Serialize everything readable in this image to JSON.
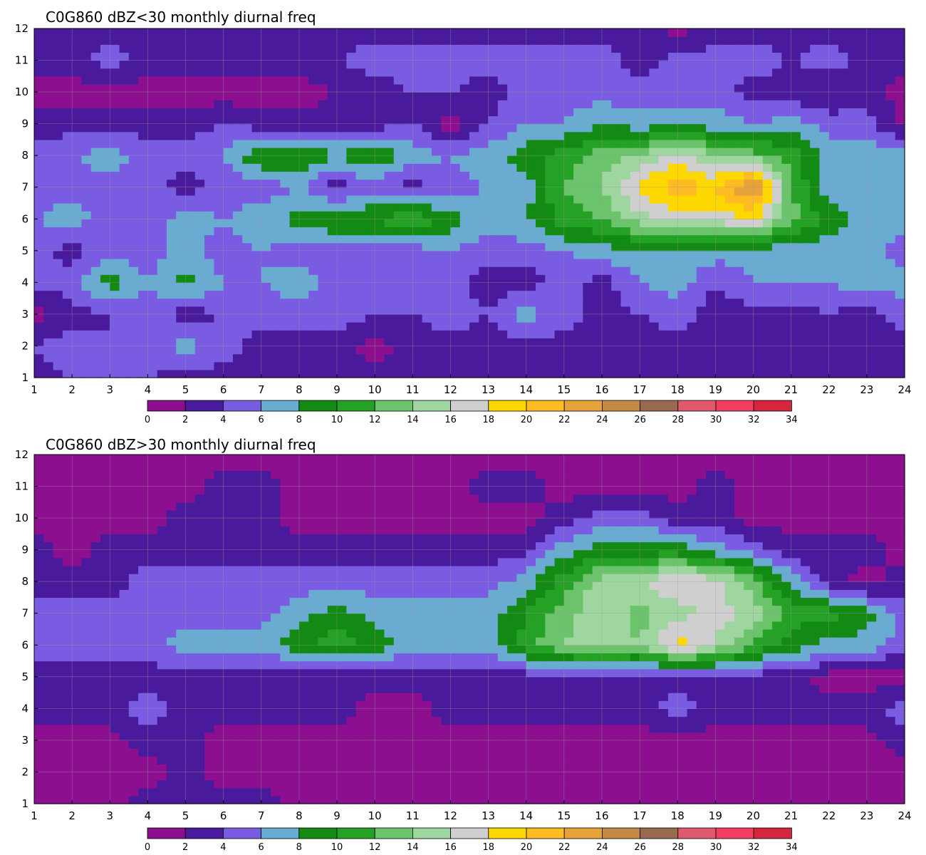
{
  "chart_data": [
    {
      "type": "heatmap",
      "title": "C0G860 dBZ<30 monthly diurnal freq",
      "xlabel": "",
      "ylabel": "",
      "x": [
        1,
        2,
        3,
        4,
        5,
        6,
        7,
        8,
        9,
        10,
        11,
        12,
        13,
        14,
        15,
        16,
        17,
        18,
        19,
        20,
        21,
        22,
        23,
        24
      ],
      "y": [
        1,
        2,
        3,
        4,
        5,
        6,
        7,
        8,
        9,
        10,
        11,
        12
      ],
      "xlim": [
        1,
        24
      ],
      "ylim": [
        1,
        12
      ],
      "grid": true,
      "z": [
        [
          3,
          4,
          4,
          4,
          3,
          3,
          2,
          2,
          2,
          3,
          3,
          2,
          3,
          3,
          3,
          3,
          3,
          2,
          3,
          3,
          2,
          3,
          2,
          3
        ],
        [
          4,
          5,
          4,
          5,
          7,
          5,
          3,
          3,
          3,
          1,
          3,
          3,
          3,
          3,
          3,
          3,
          3,
          3,
          3,
          3,
          3,
          3,
          3,
          3
        ],
        [
          1,
          3,
          4,
          5,
          3,
          4,
          5,
          5,
          5,
          4,
          4,
          5,
          4,
          7,
          5,
          3,
          4,
          5,
          3,
          3,
          3,
          4,
          3,
          5
        ],
        [
          5,
          5,
          9,
          6,
          9,
          6,
          6,
          7,
          5,
          5,
          5,
          5,
          3,
          3,
          5,
          3,
          6,
          7,
          4,
          6,
          6,
          6,
          7,
          7
        ],
        [
          5,
          3,
          5,
          5,
          7,
          5,
          6,
          5,
          5,
          5,
          5,
          6,
          5,
          5,
          6,
          7,
          8,
          7,
          7,
          7,
          7,
          7,
          7,
          5
        ],
        [
          6,
          7,
          5,
          5,
          7,
          6,
          7,
          9,
          10,
          10,
          12,
          9,
          7,
          8,
          11,
          12,
          15,
          17,
          17,
          18,
          13,
          9,
          7,
          7
        ],
        [
          5,
          5,
          5,
          5,
          3,
          5,
          5,
          6,
          3,
          5,
          3,
          5,
          6,
          7,
          12,
          14,
          19,
          21,
          20,
          25,
          12,
          7,
          7,
          7
        ],
        [
          5,
          6,
          7,
          5,
          5,
          6,
          10,
          10,
          8,
          10,
          7,
          6,
          7,
          9,
          11,
          13,
          14,
          17,
          14,
          13,
          11,
          7,
          7,
          7
        ],
        [
          3,
          3,
          3,
          3,
          3,
          4,
          3,
          3,
          3,
          3,
          4,
          1,
          4,
          6,
          6,
          8,
          7,
          7,
          7,
          6,
          7,
          5,
          5,
          1
        ],
        [
          1,
          1,
          1,
          1,
          1,
          1,
          1,
          1,
          2,
          3,
          4,
          4,
          3,
          5,
          5,
          5,
          5,
          5,
          5,
          3,
          3,
          2,
          3,
          1
        ],
        [
          3,
          3,
          5,
          3,
          3,
          3,
          3,
          3,
          4,
          5,
          5,
          5,
          5,
          5,
          5,
          5,
          3,
          5,
          5,
          5,
          4,
          5,
          3,
          3
        ],
        [
          3,
          3,
          3,
          3,
          3,
          3,
          3,
          3,
          3,
          3,
          3,
          3,
          3,
          3,
          3,
          3,
          3,
          1,
          3,
          3,
          3,
          3,
          3,
          3
        ]
      ]
    },
    {
      "type": "heatmap",
      "title": "C0G860 dBZ>30 monthly diurnal freq",
      "xlabel": "",
      "ylabel": "",
      "x": [
        1,
        2,
        3,
        4,
        5,
        6,
        7,
        8,
        9,
        10,
        11,
        12,
        13,
        14,
        15,
        16,
        17,
        18,
        19,
        20,
        21,
        22,
        23,
        24
      ],
      "y": [
        1,
        2,
        3,
        4,
        5,
        6,
        7,
        8,
        9,
        10,
        11,
        12
      ],
      "xlim": [
        1,
        24
      ],
      "ylim": [
        1,
        12
      ],
      "grid": true,
      "z": [
        [
          1,
          1,
          1,
          3,
          3,
          3,
          3,
          1,
          1,
          1,
          1,
          1,
          1,
          1,
          1,
          1,
          1,
          1,
          1,
          1,
          1,
          1,
          1,
          1
        ],
        [
          1,
          1,
          1,
          1,
          3,
          1,
          1,
          1,
          1,
          1,
          1,
          1,
          1,
          1,
          1,
          1,
          1,
          1,
          1,
          1,
          1,
          1,
          1,
          1
        ],
        [
          1,
          1,
          1,
          3,
          3,
          1,
          1,
          1,
          1,
          1,
          1,
          1,
          1,
          1,
          1,
          1,
          1,
          1,
          1,
          1,
          1,
          1,
          1,
          3
        ],
        [
          3,
          3,
          3,
          5,
          3,
          3,
          3,
          3,
          3,
          1,
          1,
          3,
          3,
          3,
          3,
          3,
          3,
          5,
          3,
          3,
          3,
          3,
          3,
          5
        ],
        [
          3,
          3,
          3,
          3,
          3,
          3,
          3,
          3,
          3,
          3,
          3,
          3,
          3,
          3,
          3,
          3,
          3,
          3,
          3,
          3,
          3,
          1,
          1,
          1
        ],
        [
          5,
          5,
          5,
          5,
          7,
          7,
          7,
          9,
          11,
          9,
          7,
          7,
          7,
          11,
          14,
          15,
          14,
          19,
          16,
          12,
          9,
          7,
          7,
          5
        ],
        [
          5,
          5,
          5,
          5,
          5,
          5,
          5,
          7,
          9,
          7,
          7,
          7,
          7,
          10,
          13,
          16,
          13,
          15,
          17,
          15,
          11,
          11,
          9,
          5
        ],
        [
          3,
          3,
          3,
          5,
          5,
          5,
          5,
          5,
          5,
          5,
          5,
          5,
          5,
          7,
          11,
          15,
          16,
          18,
          17,
          13,
          7,
          3,
          1,
          3
        ],
        [
          3,
          1,
          3,
          3,
          3,
          3,
          3,
          3,
          3,
          3,
          3,
          3,
          3,
          3,
          7,
          9,
          9,
          9,
          7,
          5,
          3,
          3,
          3,
          1
        ],
        [
          1,
          1,
          1,
          1,
          3,
          3,
          3,
          1,
          1,
          1,
          1,
          1,
          1,
          1,
          3,
          5,
          5,
          3,
          3,
          1,
          1,
          1,
          1,
          1
        ],
        [
          1,
          1,
          1,
          1,
          1,
          3,
          3,
          1,
          1,
          1,
          1,
          1,
          3,
          3,
          1,
          1,
          1,
          1,
          3,
          1,
          1,
          1,
          1,
          1
        ],
        [
          1,
          1,
          1,
          1,
          1,
          1,
          1,
          1,
          1,
          1,
          1,
          1,
          1,
          1,
          1,
          1,
          1,
          1,
          1,
          1,
          1,
          1,
          1,
          1
        ]
      ]
    }
  ],
  "legend": {
    "levels": [
      0,
      2,
      4,
      6,
      8,
      10,
      12,
      14,
      16,
      18,
      20,
      22,
      24,
      26,
      28,
      30,
      32,
      34
    ],
    "labels": [
      "0",
      "2",
      "4",
      "6",
      "8",
      "10",
      "12",
      "14",
      "16",
      "18",
      "20",
      "22",
      "24",
      "26",
      "28",
      "30",
      "32",
      "34"
    ],
    "colors": [
      "#8b0f8e",
      "#4a1a9c",
      "#7a5ce3",
      "#6aabd2",
      "#138a13",
      "#25a125",
      "#6bc46b",
      "#9fd69f",
      "#cfcfcf",
      "#ffd800",
      "#ffbb22",
      "#e5a33a",
      "#c48a46",
      "#9a6a50",
      "#e05a6e",
      "#f23e63",
      "#d6263e"
    ]
  },
  "colors": {
    "contour_line": "#f5a623",
    "grid_line": "#9a9a9a",
    "axis": "#000000"
  }
}
